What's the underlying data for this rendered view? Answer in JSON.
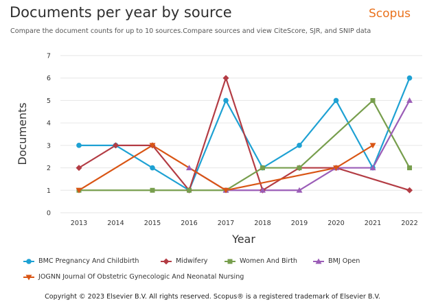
{
  "header": {
    "title": "Documents per year by source",
    "brand": "Scopus",
    "subtitle": "Compare the document counts for up to 10 sources.Compare sources and view CiteScore, SJR, and SNIP data"
  },
  "chart_data": {
    "type": "line",
    "title": "Documents per year by source",
    "xlabel": "Year",
    "ylabel": "Documents",
    "x": [
      2013,
      2014,
      2015,
      2016,
      2017,
      2018,
      2019,
      2020,
      2021,
      2022
    ],
    "ylim": [
      0,
      7
    ],
    "yticks": [
      0,
      1,
      2,
      3,
      4,
      5,
      6,
      7
    ],
    "grid": true,
    "legend_position": "bottom",
    "series": [
      {
        "name": "BMC Pregnancy And Childbirth",
        "color": "#1ea1d3",
        "marker": "circle",
        "points": [
          [
            2013,
            3
          ],
          [
            2014,
            3
          ],
          [
            2015,
            2
          ],
          [
            2016,
            1
          ],
          [
            2017,
            5
          ],
          [
            2018,
            2
          ],
          [
            2019,
            3
          ],
          [
            2020,
            5
          ],
          [
            2021,
            2
          ],
          [
            2022,
            6
          ]
        ]
      },
      {
        "name": "Midwifery",
        "color": "#b33c44",
        "marker": "diamond",
        "points": [
          [
            2013,
            2
          ],
          [
            2014,
            3
          ],
          [
            2015,
            3
          ],
          [
            2016,
            1
          ],
          [
            2017,
            6
          ],
          [
            2018,
            1
          ],
          [
            2019,
            2
          ],
          [
            2020,
            2
          ],
          [
            2022,
            1
          ]
        ]
      },
      {
        "name": "Women And Birth",
        "color": "#779e4d",
        "marker": "square",
        "points": [
          [
            2013,
            1
          ],
          [
            2015,
            1
          ],
          [
            2016,
            1
          ],
          [
            2017,
            1
          ],
          [
            2018,
            2
          ],
          [
            2019,
            2
          ],
          [
            2021,
            5
          ],
          [
            2022,
            2
          ]
        ]
      },
      {
        "name": "BMJ Open",
        "color": "#9b5db7",
        "marker": "triangle",
        "points": [
          [
            2016,
            2
          ],
          [
            2017,
            1
          ],
          [
            2018,
            1
          ],
          [
            2019,
            1
          ],
          [
            2020,
            2
          ],
          [
            2021,
            2
          ],
          [
            2022,
            5
          ]
        ]
      },
      {
        "name": "JOGNN Journal Of Obstetric Gynecologic And Neonatal Nursing",
        "color": "#d95514",
        "marker": "triangle-down",
        "points": [
          [
            2013,
            1
          ],
          [
            2015,
            3
          ],
          [
            2017,
            1
          ],
          [
            2020,
            2
          ],
          [
            2021,
            3
          ]
        ]
      }
    ]
  },
  "footer": {
    "copyright": "Copyright © 2023 Elsevier B.V. All rights reserved. Scopus® is a registered trademark of Elsevier B.V."
  }
}
